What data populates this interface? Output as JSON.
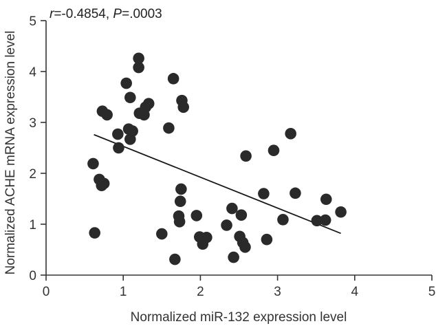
{
  "chart_data": {
    "type": "scatter",
    "title": "",
    "annotation": {
      "r_symbol": "r",
      "r_value": "=-0.4854, ",
      "p_symbol": "P",
      "p_value": "=.0003"
    },
    "xlabel": "Normalized miR-132 expression level",
    "ylabel": "Normalized ACHE mRNA expression level",
    "xlim": [
      0,
      5
    ],
    "ylim": [
      0,
      5
    ],
    "x_ticks": [
      "0",
      "1",
      "2",
      "3",
      "4",
      "5"
    ],
    "y_ticks": [
      "0",
      "1",
      "2",
      "3",
      "4",
      "5"
    ],
    "grid": false,
    "point_color": "#2a2a2a",
    "fit_line": {
      "x": [
        0.62,
        3.82
      ],
      "y": [
        2.76,
        0.82
      ]
    },
    "points": [
      {
        "x": 0.61,
        "y": 2.19
      },
      {
        "x": 0.63,
        "y": 0.83
      },
      {
        "x": 0.69,
        "y": 1.88
      },
      {
        "x": 0.72,
        "y": 1.76
      },
      {
        "x": 0.75,
        "y": 1.8
      },
      {
        "x": 0.73,
        "y": 3.22
      },
      {
        "x": 0.79,
        "y": 3.15
      },
      {
        "x": 0.93,
        "y": 2.77
      },
      {
        "x": 0.94,
        "y": 2.5
      },
      {
        "x": 1.04,
        "y": 3.77
      },
      {
        "x": 1.07,
        "y": 2.87
      },
      {
        "x": 1.09,
        "y": 3.49
      },
      {
        "x": 1.09,
        "y": 2.67
      },
      {
        "x": 1.12,
        "y": 2.83
      },
      {
        "x": 1.2,
        "y": 4.26
      },
      {
        "x": 1.2,
        "y": 4.08
      },
      {
        "x": 1.21,
        "y": 3.18
      },
      {
        "x": 1.27,
        "y": 3.15
      },
      {
        "x": 1.29,
        "y": 3.3
      },
      {
        "x": 1.33,
        "y": 3.37
      },
      {
        "x": 1.5,
        "y": 0.81
      },
      {
        "x": 1.59,
        "y": 2.89
      },
      {
        "x": 1.65,
        "y": 3.86
      },
      {
        "x": 1.67,
        "y": 0.31
      },
      {
        "x": 1.72,
        "y": 1.16
      },
      {
        "x": 1.73,
        "y": 1.05
      },
      {
        "x": 1.74,
        "y": 1.45
      },
      {
        "x": 1.75,
        "y": 1.69
      },
      {
        "x": 1.76,
        "y": 3.43
      },
      {
        "x": 1.78,
        "y": 3.3
      },
      {
        "x": 1.95,
        "y": 1.17
      },
      {
        "x": 1.99,
        "y": 0.75
      },
      {
        "x": 2.03,
        "y": 0.61
      },
      {
        "x": 2.08,
        "y": 0.74
      },
      {
        "x": 2.34,
        "y": 0.98
      },
      {
        "x": 2.41,
        "y": 1.31
      },
      {
        "x": 2.43,
        "y": 0.35
      },
      {
        "x": 2.51,
        "y": 0.76
      },
      {
        "x": 2.53,
        "y": 1.18
      },
      {
        "x": 2.55,
        "y": 0.64
      },
      {
        "x": 2.58,
        "y": 0.55
      },
      {
        "x": 2.59,
        "y": 2.34
      },
      {
        "x": 2.82,
        "y": 1.6
      },
      {
        "x": 2.86,
        "y": 0.7
      },
      {
        "x": 2.95,
        "y": 2.45
      },
      {
        "x": 3.07,
        "y": 1.09
      },
      {
        "x": 3.17,
        "y": 2.78
      },
      {
        "x": 3.23,
        "y": 1.61
      },
      {
        "x": 3.51,
        "y": 1.07
      },
      {
        "x": 3.62,
        "y": 1.08
      },
      {
        "x": 3.63,
        "y": 1.49
      },
      {
        "x": 3.82,
        "y": 1.24
      }
    ]
  }
}
